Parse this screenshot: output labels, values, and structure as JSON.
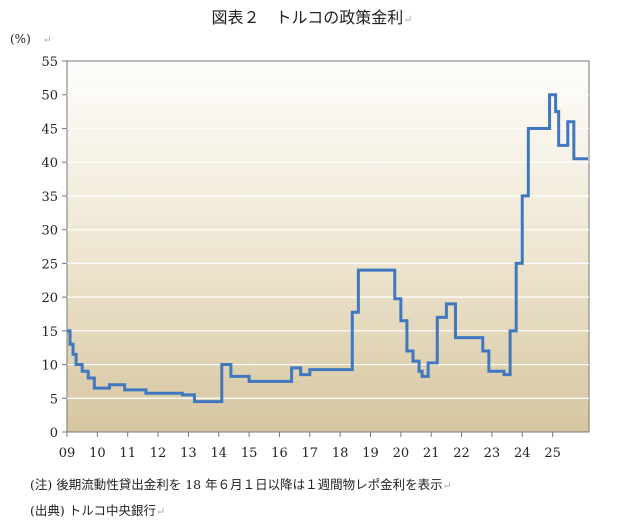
{
  "title": "図表２　トルコの政策金利",
  "unit_label": "(%)",
  "return_mark": "↵",
  "notes": [
    "(注) 後期流動性貸出金利を 18 年６月１日以降は１週間物レポ金利を表示",
    "(出典) トルコ中央銀行"
  ],
  "chart_data": {
    "type": "line",
    "title": "図表２　トルコの政策金利",
    "xlabel": "",
    "ylabel": "(%)",
    "ylim": [
      0,
      55
    ],
    "yticks": [
      0,
      5,
      10,
      15,
      20,
      25,
      30,
      35,
      40,
      45,
      50,
      55
    ],
    "xticks": [
      "09",
      "10",
      "11",
      "12",
      "13",
      "14",
      "15",
      "16",
      "17",
      "18",
      "19",
      "20",
      "21",
      "22",
      "23",
      "24",
      "25"
    ],
    "grid": true,
    "line_color": "#3f78c0",
    "series": [
      {
        "name": "政策金利",
        "x": [
          2009.0,
          2009.1,
          2009.2,
          2009.3,
          2009.5,
          2009.7,
          2009.9,
          2010.4,
          2010.9,
          2011.6,
          2012.8,
          2013.2,
          2013.5,
          2014.1,
          2014.4,
          2014.6,
          2015.0,
          2016.1,
          2016.4,
          2016.7,
          2017.0,
          2018.0,
          2018.4,
          2018.6,
          2019.6,
          2019.8,
          2020.0,
          2020.2,
          2020.4,
          2020.6,
          2020.7,
          2020.9,
          2021.2,
          2021.5,
          2021.8,
          2022.5,
          2022.7,
          2022.9,
          2023.4,
          2023.6,
          2023.8,
          2024.0,
          2024.2,
          2024.9,
          2025.1,
          2025.2,
          2025.5,
          2025.7
        ],
        "y": [
          15.0,
          13.0,
          11.5,
          10.0,
          9.0,
          8.0,
          6.5,
          7.0,
          6.25,
          5.75,
          5.5,
          4.5,
          4.5,
          10.0,
          8.25,
          8.25,
          7.5,
          7.5,
          9.5,
          8.5,
          9.25,
          9.25,
          17.75,
          24.0,
          24.0,
          19.75,
          16.5,
          12.0,
          10.5,
          9.0,
          8.25,
          10.25,
          17.0,
          19.0,
          14.0,
          14.0,
          12.0,
          9.0,
          8.5,
          15.0,
          25.0,
          35.0,
          45.0,
          50.0,
          47.5,
          42.5,
          46.0,
          40.5
        ]
      }
    ]
  }
}
